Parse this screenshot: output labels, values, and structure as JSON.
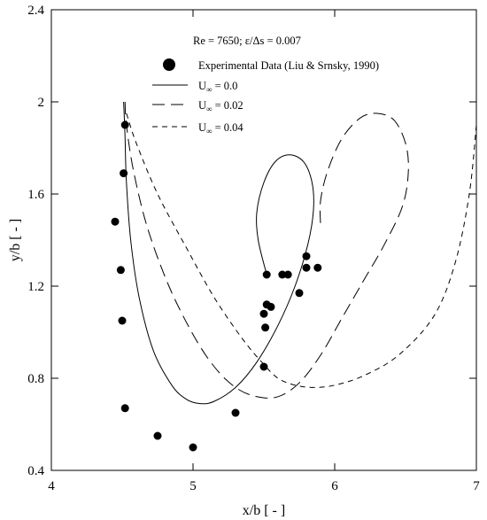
{
  "chart_data": {
    "type": "line",
    "title": "Re = 7650; ε/Δs = 0.007",
    "xlabel": "x/b [ - ]",
    "ylabel": "y/b [ - ]",
    "xlim": [
      4,
      7
    ],
    "ylim": [
      0.4,
      2.4
    ],
    "xticks": [
      4,
      5,
      6,
      7
    ],
    "yticks": [
      0.4,
      0.8,
      1.2,
      1.6,
      2,
      2.4
    ],
    "xtick_labels": [
      "4",
      "5",
      "6",
      "7"
    ],
    "ytick_labels": [
      "0.4",
      "0.8",
      "1.2",
      "1.6",
      "2",
      "2.4"
    ],
    "grid": false,
    "legend_position": "top-center",
    "scatter": {
      "name": "Experimental Data (Liu & Srnsky, 1990)",
      "points": [
        [
          4.52,
          1.9
        ],
        [
          4.51,
          1.69
        ],
        [
          4.45,
          1.48
        ],
        [
          4.49,
          1.27
        ],
        [
          4.5,
          1.05
        ],
        [
          4.52,
          0.67
        ],
        [
          4.75,
          0.55
        ],
        [
          5.0,
          0.5
        ],
        [
          5.3,
          0.65
        ],
        [
          5.5,
          0.85
        ],
        [
          5.51,
          1.02
        ],
        [
          5.5,
          1.08
        ],
        [
          5.52,
          1.12
        ],
        [
          5.55,
          1.11
        ],
        [
          5.52,
          1.25
        ],
        [
          5.63,
          1.25
        ],
        [
          5.67,
          1.25
        ],
        [
          5.75,
          1.17
        ],
        [
          5.8,
          1.28
        ],
        [
          5.8,
          1.33
        ],
        [
          5.88,
          1.28
        ]
      ]
    },
    "series": [
      {
        "name_prefix": "U",
        "name_sub": "∞",
        "name_suffix": " = 0.0",
        "dash": "solid",
        "points": [
          [
            4.51,
            2.0
          ],
          [
            4.52,
            1.85
          ],
          [
            4.53,
            1.65
          ],
          [
            4.56,
            1.4
          ],
          [
            4.62,
            1.15
          ],
          [
            4.72,
            0.92
          ],
          [
            4.85,
            0.77
          ],
          [
            4.95,
            0.71
          ],
          [
            5.05,
            0.69
          ],
          [
            5.15,
            0.7
          ],
          [
            5.3,
            0.76
          ],
          [
            5.45,
            0.87
          ],
          [
            5.6,
            1.03
          ],
          [
            5.72,
            1.2
          ],
          [
            5.81,
            1.38
          ],
          [
            5.85,
            1.53
          ],
          [
            5.84,
            1.65
          ],
          [
            5.78,
            1.74
          ],
          [
            5.68,
            1.77
          ],
          [
            5.58,
            1.74
          ],
          [
            5.5,
            1.65
          ],
          [
            5.45,
            1.52
          ],
          [
            5.46,
            1.4
          ],
          [
            5.52,
            1.25
          ]
        ]
      },
      {
        "name_prefix": "U",
        "name_sub": "∞",
        "name_suffix": " = 0.02",
        "dash": "long",
        "points": [
          [
            4.52,
            2.0
          ],
          [
            4.53,
            1.9
          ],
          [
            4.58,
            1.7
          ],
          [
            4.68,
            1.45
          ],
          [
            4.83,
            1.2
          ],
          [
            5.0,
            0.99
          ],
          [
            5.15,
            0.85
          ],
          [
            5.3,
            0.76
          ],
          [
            5.45,
            0.72
          ],
          [
            5.6,
            0.72
          ],
          [
            5.75,
            0.78
          ],
          [
            5.9,
            0.9
          ],
          [
            6.05,
            1.06
          ],
          [
            6.2,
            1.22
          ],
          [
            6.35,
            1.38
          ],
          [
            6.48,
            1.55
          ],
          [
            6.52,
            1.7
          ],
          [
            6.5,
            1.82
          ],
          [
            6.42,
            1.92
          ],
          [
            6.3,
            1.95
          ],
          [
            6.18,
            1.93
          ],
          [
            6.05,
            1.84
          ],
          [
            5.95,
            1.7
          ],
          [
            5.9,
            1.57
          ],
          [
            5.9,
            1.47
          ]
        ]
      },
      {
        "name_prefix": "U",
        "name_sub": "∞",
        "name_suffix": " = 0.04",
        "dash": "short",
        "points": [
          [
            4.53,
            1.95
          ],
          [
            4.6,
            1.82
          ],
          [
            4.75,
            1.6
          ],
          [
            4.95,
            1.37
          ],
          [
            5.15,
            1.15
          ],
          [
            5.35,
            0.97
          ],
          [
            5.5,
            0.86
          ],
          [
            5.6,
            0.8
          ],
          [
            5.72,
            0.77
          ],
          [
            5.85,
            0.76
          ],
          [
            6.0,
            0.77
          ],
          [
            6.2,
            0.81
          ],
          [
            6.45,
            0.9
          ],
          [
            6.7,
            1.07
          ],
          [
            6.85,
            1.3
          ],
          [
            6.95,
            1.6
          ],
          [
            7.0,
            1.9
          ]
        ]
      }
    ]
  }
}
